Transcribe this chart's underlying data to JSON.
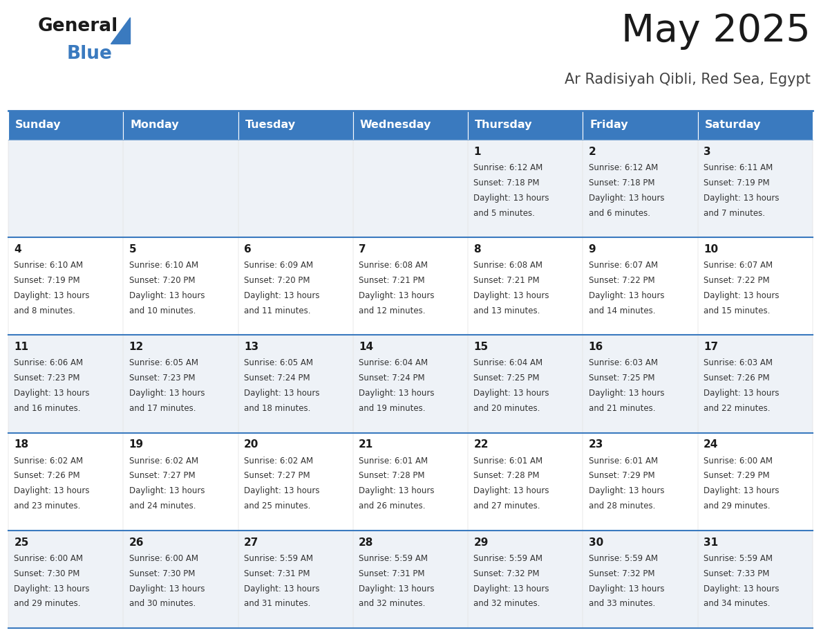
{
  "title": "May 2025",
  "subtitle": "Ar Radisiyah Qibli, Red Sea, Egypt",
  "header_color": "#3a7abf",
  "header_text_color": "#ffffff",
  "row_bg_odd": "#eef2f7",
  "row_bg_even": "#ffffff",
  "border_color": "#3a7abf",
  "day_headers": [
    "Sunday",
    "Monday",
    "Tuesday",
    "Wednesday",
    "Thursday",
    "Friday",
    "Saturday"
  ],
  "title_color": "#1a1a1a",
  "subtitle_color": "#444444",
  "days": [
    {
      "day": 1,
      "col": 4,
      "row": 0,
      "sunrise": "6:12 AM",
      "sunset": "7:18 PM",
      "daylight": "13 hours and 5 minutes."
    },
    {
      "day": 2,
      "col": 5,
      "row": 0,
      "sunrise": "6:12 AM",
      "sunset": "7:18 PM",
      "daylight": "13 hours and 6 minutes."
    },
    {
      "day": 3,
      "col": 6,
      "row": 0,
      "sunrise": "6:11 AM",
      "sunset": "7:19 PM",
      "daylight": "13 hours and 7 minutes."
    },
    {
      "day": 4,
      "col": 0,
      "row": 1,
      "sunrise": "6:10 AM",
      "sunset": "7:19 PM",
      "daylight": "13 hours and 8 minutes."
    },
    {
      "day": 5,
      "col": 1,
      "row": 1,
      "sunrise": "6:10 AM",
      "sunset": "7:20 PM",
      "daylight": "13 hours and 10 minutes."
    },
    {
      "day": 6,
      "col": 2,
      "row": 1,
      "sunrise": "6:09 AM",
      "sunset": "7:20 PM",
      "daylight": "13 hours and 11 minutes."
    },
    {
      "day": 7,
      "col": 3,
      "row": 1,
      "sunrise": "6:08 AM",
      "sunset": "7:21 PM",
      "daylight": "13 hours and 12 minutes."
    },
    {
      "day": 8,
      "col": 4,
      "row": 1,
      "sunrise": "6:08 AM",
      "sunset": "7:21 PM",
      "daylight": "13 hours and 13 minutes."
    },
    {
      "day": 9,
      "col": 5,
      "row": 1,
      "sunrise": "6:07 AM",
      "sunset": "7:22 PM",
      "daylight": "13 hours and 14 minutes."
    },
    {
      "day": 10,
      "col": 6,
      "row": 1,
      "sunrise": "6:07 AM",
      "sunset": "7:22 PM",
      "daylight": "13 hours and 15 minutes."
    },
    {
      "day": 11,
      "col": 0,
      "row": 2,
      "sunrise": "6:06 AM",
      "sunset": "7:23 PM",
      "daylight": "13 hours and 16 minutes."
    },
    {
      "day": 12,
      "col": 1,
      "row": 2,
      "sunrise": "6:05 AM",
      "sunset": "7:23 PM",
      "daylight": "13 hours and 17 minutes."
    },
    {
      "day": 13,
      "col": 2,
      "row": 2,
      "sunrise": "6:05 AM",
      "sunset": "7:24 PM",
      "daylight": "13 hours and 18 minutes."
    },
    {
      "day": 14,
      "col": 3,
      "row": 2,
      "sunrise": "6:04 AM",
      "sunset": "7:24 PM",
      "daylight": "13 hours and 19 minutes."
    },
    {
      "day": 15,
      "col": 4,
      "row": 2,
      "sunrise": "6:04 AM",
      "sunset": "7:25 PM",
      "daylight": "13 hours and 20 minutes."
    },
    {
      "day": 16,
      "col": 5,
      "row": 2,
      "sunrise": "6:03 AM",
      "sunset": "7:25 PM",
      "daylight": "13 hours and 21 minutes."
    },
    {
      "day": 17,
      "col": 6,
      "row": 2,
      "sunrise": "6:03 AM",
      "sunset": "7:26 PM",
      "daylight": "13 hours and 22 minutes."
    },
    {
      "day": 18,
      "col": 0,
      "row": 3,
      "sunrise": "6:02 AM",
      "sunset": "7:26 PM",
      "daylight": "13 hours and 23 minutes."
    },
    {
      "day": 19,
      "col": 1,
      "row": 3,
      "sunrise": "6:02 AM",
      "sunset": "7:27 PM",
      "daylight": "13 hours and 24 minutes."
    },
    {
      "day": 20,
      "col": 2,
      "row": 3,
      "sunrise": "6:02 AM",
      "sunset": "7:27 PM",
      "daylight": "13 hours and 25 minutes."
    },
    {
      "day": 21,
      "col": 3,
      "row": 3,
      "sunrise": "6:01 AM",
      "sunset": "7:28 PM",
      "daylight": "13 hours and 26 minutes."
    },
    {
      "day": 22,
      "col": 4,
      "row": 3,
      "sunrise": "6:01 AM",
      "sunset": "7:28 PM",
      "daylight": "13 hours and 27 minutes."
    },
    {
      "day": 23,
      "col": 5,
      "row": 3,
      "sunrise": "6:01 AM",
      "sunset": "7:29 PM",
      "daylight": "13 hours and 28 minutes."
    },
    {
      "day": 24,
      "col": 6,
      "row": 3,
      "sunrise": "6:00 AM",
      "sunset": "7:29 PM",
      "daylight": "13 hours and 29 minutes."
    },
    {
      "day": 25,
      "col": 0,
      "row": 4,
      "sunrise": "6:00 AM",
      "sunset": "7:30 PM",
      "daylight": "13 hours and 29 minutes."
    },
    {
      "day": 26,
      "col": 1,
      "row": 4,
      "sunrise": "6:00 AM",
      "sunset": "7:30 PM",
      "daylight": "13 hours and 30 minutes."
    },
    {
      "day": 27,
      "col": 2,
      "row": 4,
      "sunrise": "5:59 AM",
      "sunset": "7:31 PM",
      "daylight": "13 hours and 31 minutes."
    },
    {
      "day": 28,
      "col": 3,
      "row": 4,
      "sunrise": "5:59 AM",
      "sunset": "7:31 PM",
      "daylight": "13 hours and 32 minutes."
    },
    {
      "day": 29,
      "col": 4,
      "row": 4,
      "sunrise": "5:59 AM",
      "sunset": "7:32 PM",
      "daylight": "13 hours and 32 minutes."
    },
    {
      "day": 30,
      "col": 5,
      "row": 4,
      "sunrise": "5:59 AM",
      "sunset": "7:32 PM",
      "daylight": "13 hours and 33 minutes."
    },
    {
      "day": 31,
      "col": 6,
      "row": 4,
      "sunrise": "5:59 AM",
      "sunset": "7:33 PM",
      "daylight": "13 hours and 34 minutes."
    }
  ]
}
